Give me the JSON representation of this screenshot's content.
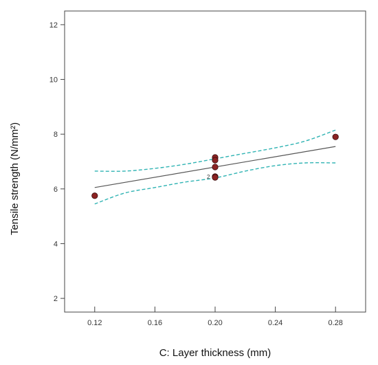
{
  "chart_data": {
    "type": "scatter",
    "xlabel": "C: Layer thickness (mm)",
    "ylabel": "Tensile strength (N/mm²)",
    "xlim": [
      0.1,
      0.3
    ],
    "ylim": [
      1.5,
      12.5
    ],
    "x_ticks": [
      "0.12",
      "0.16",
      "0.20",
      "0.24",
      "0.28"
    ],
    "x_tick_values": [
      0.12,
      0.16,
      0.2,
      0.24,
      0.28
    ],
    "y_ticks": [
      "2",
      "4",
      "6",
      "8",
      "10",
      "12"
    ],
    "y_tick_values": [
      2,
      4,
      6,
      8,
      10,
      12
    ],
    "grid": false,
    "points": [
      {
        "x": 0.12,
        "y": 5.75
      },
      {
        "x": 0.2,
        "y": 7.15
      },
      {
        "x": 0.2,
        "y": 7.05
      },
      {
        "x": 0.2,
        "y": 6.8
      },
      {
        "x": 0.2,
        "y": 6.45
      },
      {
        "x": 0.2,
        "y": 6.42
      },
      {
        "x": 0.28,
        "y": 7.9
      }
    ],
    "multiplicity_labels": [
      {
        "x": 0.2,
        "y": 6.45,
        "text": "2"
      }
    ],
    "fit_line": {
      "x": [
        0.12,
        0.28
      ],
      "y": [
        6.05,
        7.55
      ]
    },
    "confidence_upper": {
      "x": [
        0.12,
        0.14,
        0.16,
        0.18,
        0.2,
        0.22,
        0.24,
        0.26,
        0.28
      ],
      "y": [
        6.65,
        6.65,
        6.75,
        6.9,
        7.1,
        7.3,
        7.5,
        7.75,
        8.15
      ]
    },
    "confidence_lower": {
      "x": [
        0.12,
        0.14,
        0.16,
        0.18,
        0.2,
        0.22,
        0.24,
        0.26,
        0.28
      ],
      "y": [
        5.45,
        5.85,
        6.05,
        6.25,
        6.4,
        6.65,
        6.85,
        6.95,
        6.95
      ]
    },
    "colors": {
      "point_fill": "#8b2323",
      "point_stroke": "#3a0c0c",
      "fit_line": "#555555",
      "confidence": "#2fb3b3",
      "frame": "#444444"
    }
  }
}
